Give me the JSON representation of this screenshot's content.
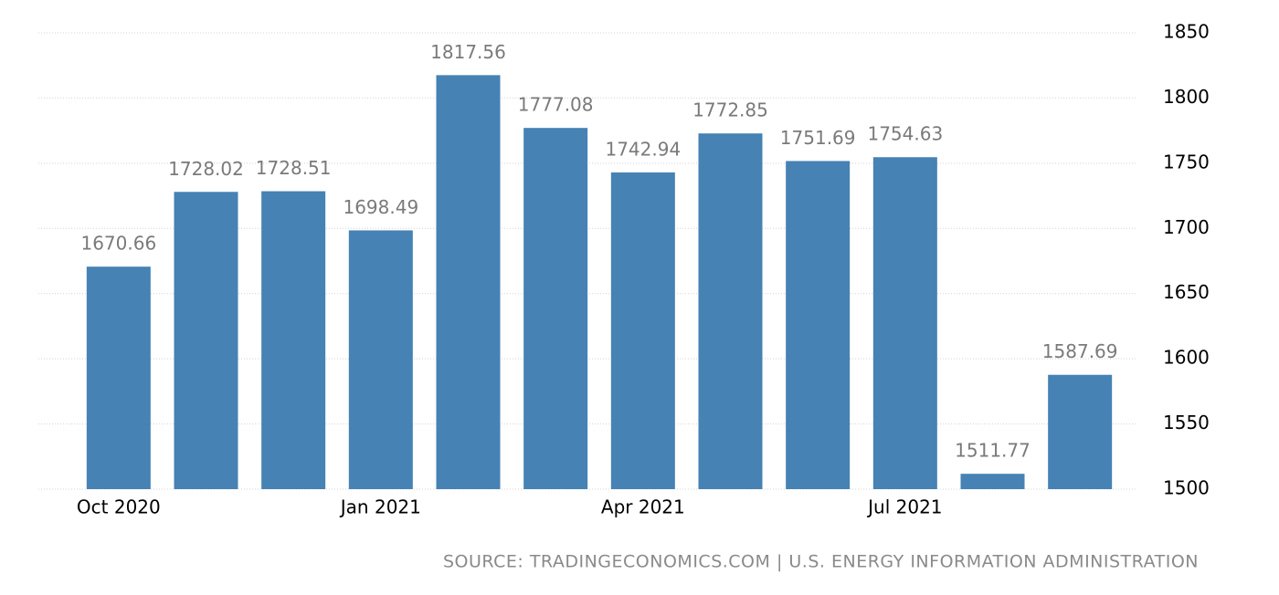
{
  "chart_data": {
    "type": "bar",
    "categories": [
      "Oct 2020",
      null,
      null,
      "Jan 2021",
      null,
      null,
      "Apr 2021",
      null,
      null,
      "Jul 2021",
      null,
      null
    ],
    "values": [
      1670.66,
      1728.02,
      1728.51,
      1698.49,
      1817.56,
      1777.08,
      1742.94,
      1772.85,
      1751.69,
      1754.63,
      1511.77,
      1587.69
    ],
    "color": "#4682b4",
    "ylim": [
      1500,
      1850
    ],
    "yticks": [
      1500,
      1550,
      1600,
      1650,
      1700,
      1750,
      1800,
      1850
    ],
    "grid": true,
    "source": "SOURCE: TRADINGECONOMICS.COM | U.S. ENERGY INFORMATION ADMINISTRATION"
  }
}
